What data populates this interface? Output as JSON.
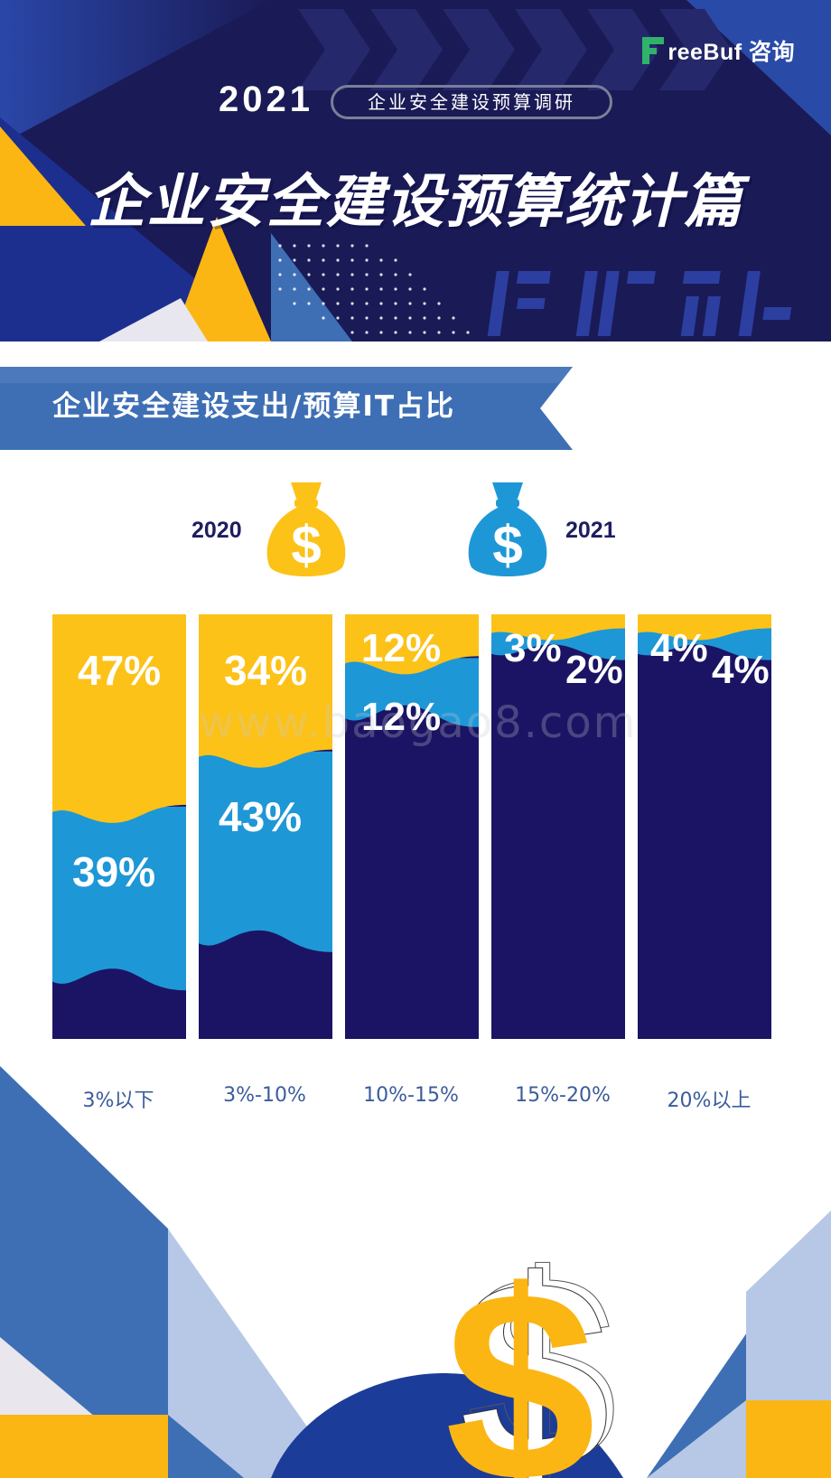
{
  "brand": {
    "name": "reeBuf 咨询"
  },
  "header": {
    "year": "2021",
    "badge": "企业安全建设预算调研",
    "title": "企业安全建设预算统计篇"
  },
  "section": {
    "title": "企业安全建设支出/预算IT占比"
  },
  "legend": [
    {
      "label": "2020",
      "color": "#fcc218",
      "icon": "money-bag-icon"
    },
    {
      "label": "2021",
      "color": "#1e97d6",
      "icon": "money-bag-icon"
    }
  ],
  "watermark": "www.baogao8.com",
  "colors": {
    "y2020": "#fcc218",
    "y2021": "#1e97d6",
    "bar_bg": "#1b1464",
    "accent_blue": "#3e6fb5"
  },
  "chart_data": {
    "type": "bar",
    "categories": [
      "3%以下",
      "3%-10%",
      "10%-15%",
      "15%-20%",
      "20%以上"
    ],
    "series": [
      {
        "name": "2020",
        "values": [
          47,
          34,
          12,
          3,
          4
        ],
        "labels": [
          "47%",
          "34%",
          "12%",
          "3%",
          "4%"
        ]
      },
      {
        "name": "2021",
        "values": [
          39,
          43,
          12,
          2,
          4
        ],
        "labels": [
          "39%",
          "43%",
          "12%",
          "2%",
          "4%"
        ]
      }
    ],
    "ylim": [
      0,
      100
    ],
    "xlabel": "",
    "ylabel": ""
  }
}
